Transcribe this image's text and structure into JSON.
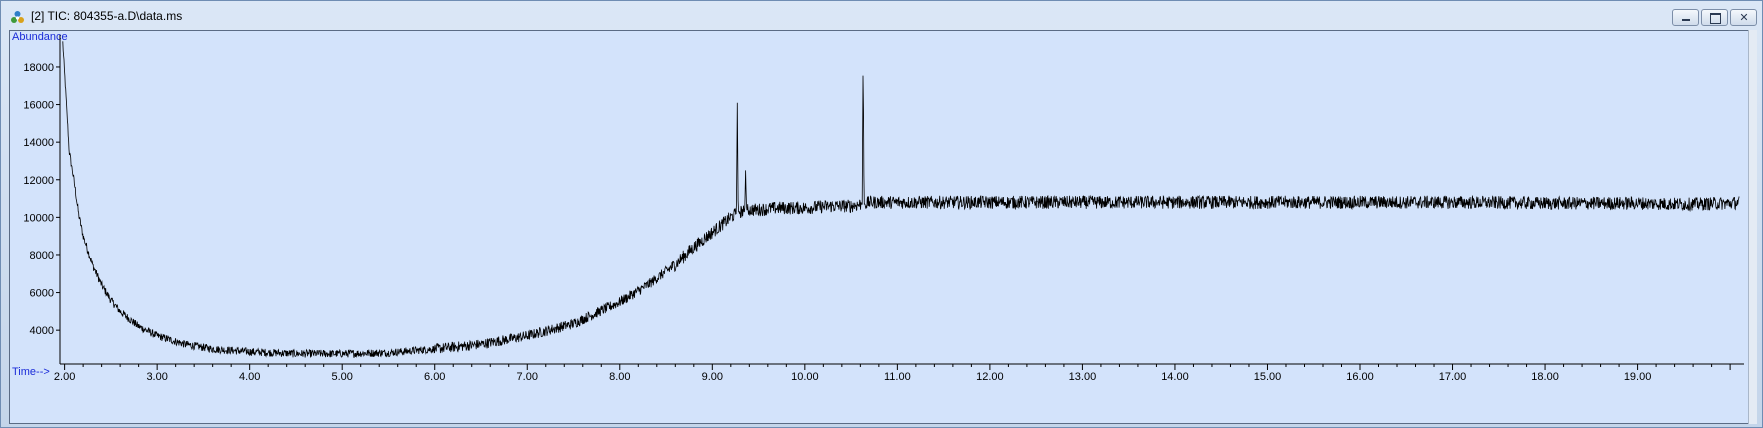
{
  "window": {
    "title": "[2] TIC: 804355-a.D\\data.ms",
    "controls": [
      "minimize",
      "maximize",
      "close"
    ]
  },
  "chart_data": {
    "type": "line",
    "title": "",
    "ylabel": "Abundance",
    "xlabel": "Time-->",
    "x_ticks": [
      "2.00",
      "3.00",
      "4.00",
      "5.00",
      "6.00",
      "7.00",
      "8.00",
      "9.00",
      "10.00",
      "11.00",
      "12.00",
      "13.00",
      "14.00",
      "15.00",
      "16.00",
      "17.00",
      "18.00",
      "19.00"
    ],
    "y_ticks": [
      "4000",
      "6000",
      "8000",
      "10000",
      "12000",
      "14000",
      "16000",
      "18000"
    ],
    "xlim": [
      1.95,
      20.15
    ],
    "ylim": [
      2200,
      19700
    ],
    "grid": false,
    "line_color": "#000000",
    "background_color": "#d3e3fb",
    "series": [
      {
        "x": [
          1.98,
          2.02,
          2.05,
          2.1,
          2.15,
          2.2,
          2.3,
          2.4,
          2.5,
          2.6,
          2.8,
          3.0,
          3.3,
          3.6,
          4.0,
          4.5,
          5.0,
          5.5,
          6.0,
          6.5,
          7.0,
          7.5,
          8.0,
          8.3,
          8.6,
          8.8,
          9.0,
          9.2,
          9.26,
          9.27,
          9.28,
          9.35,
          9.36,
          9.37,
          9.5,
          9.7,
          10.0,
          10.3,
          10.5,
          10.6,
          10.62,
          10.63,
          10.64,
          10.7,
          11.0,
          11.5,
          12.0,
          13.0,
          14.0,
          15.0,
          16.0,
          17.0,
          18.0,
          19.0,
          19.5,
          20.0,
          20.1
        ],
        "values": [
          19300,
          16000,
          13500,
          12000,
          10200,
          9000,
          7500,
          6400,
          5600,
          5000,
          4200,
          3700,
          3250,
          3000,
          2850,
          2750,
          2750,
          2800,
          3000,
          3250,
          3700,
          4350,
          5500,
          6400,
          7500,
          8400,
          9200,
          10000,
          10200,
          16100,
          10300,
          10300,
          12500,
          10400,
          10400,
          10500,
          10500,
          10600,
          10600,
          10700,
          10700,
          18300,
          10700,
          10800,
          10800,
          10800,
          10800,
          10800,
          10800,
          10800,
          10800,
          10800,
          10750,
          10750,
          10700,
          10750,
          10800
        ]
      }
    ],
    "noise_amplitude": 350
  }
}
